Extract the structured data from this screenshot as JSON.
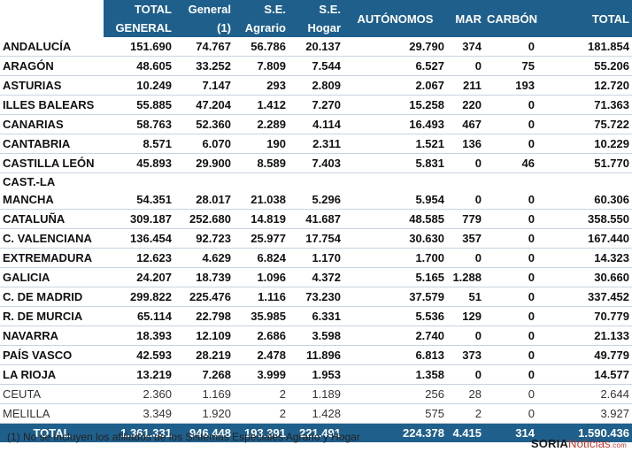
{
  "headers": {
    "total_general_1": "TOTAL",
    "total_general_2": "GENERAL",
    "general_1": "General",
    "general_2": "(1)",
    "se_agrario_1": "S.E.",
    "se_agrario_2": "Agrario",
    "se_hogar_1": "S.E.",
    "se_hogar_2": "Hogar",
    "autonomos": "AUTÓNOMOS",
    "mar": "MAR",
    "carbon": "CARBÓN",
    "total": "TOTAL"
  },
  "rows": [
    {
      "region": "ANDALUCÍA",
      "total_general": "151.690",
      "general": "74.767",
      "agrario": "56.786",
      "hogar": "20.137",
      "autonomos": "29.790",
      "mar": "374",
      "carbon": "0",
      "total": "181.854"
    },
    {
      "region": "ARAGÓN",
      "total_general": "48.605",
      "general": "33.252",
      "agrario": "7.809",
      "hogar": "7.544",
      "autonomos": "6.527",
      "mar": "0",
      "carbon": "75",
      "total": "55.206"
    },
    {
      "region": "ASTURIAS",
      "total_general": "10.249",
      "general": "7.147",
      "agrario": "293",
      "hogar": "2.809",
      "autonomos": "2.067",
      "mar": "211",
      "carbon": "193",
      "total": "12.720"
    },
    {
      "region": "ILLES BALEARS",
      "total_general": "55.885",
      "general": "47.204",
      "agrario": "1.412",
      "hogar": "7.270",
      "autonomos": "15.258",
      "mar": "220",
      "carbon": "0",
      "total": "71.363"
    },
    {
      "region": "CANARIAS",
      "total_general": "58.763",
      "general": "52.360",
      "agrario": "2.289",
      "hogar": "4.114",
      "autonomos": "16.493",
      "mar": "467",
      "carbon": "0",
      "total": "75.722"
    },
    {
      "region": "CANTABRIA",
      "total_general": "8.571",
      "general": "6.070",
      "agrario": "190",
      "hogar": "2.311",
      "autonomos": "1.521",
      "mar": "136",
      "carbon": "0",
      "total": "10.229"
    },
    {
      "region": "CASTILLA LEÓN",
      "total_general": "45.893",
      "general": "29.900",
      "agrario": "8.589",
      "hogar": "7.403",
      "autonomos": "5.831",
      "mar": "0",
      "carbon": "46",
      "total": "51.770"
    },
    {
      "region": "CAST.-LA MANCHA",
      "total_general": "54.351",
      "general": "28.017",
      "agrario": "21.038",
      "hogar": "5.296",
      "autonomos": "5.954",
      "mar": "0",
      "carbon": "0",
      "total": "60.306"
    },
    {
      "region": "CATALUÑA",
      "total_general": "309.187",
      "general": "252.680",
      "agrario": "14.819",
      "hogar": "41.687",
      "autonomos": "48.585",
      "mar": "779",
      "carbon": "0",
      "total": "358.550"
    },
    {
      "region": "C. VALENCIANA",
      "total_general": "136.454",
      "general": "92.723",
      "agrario": "25.977",
      "hogar": "17.754",
      "autonomos": "30.630",
      "mar": "357",
      "carbon": "0",
      "total": "167.440"
    },
    {
      "region": "EXTREMADURA",
      "total_general": "12.623",
      "general": "4.629",
      "agrario": "6.824",
      "hogar": "1.170",
      "autonomos": "1.700",
      "mar": "0",
      "carbon": "0",
      "total": "14.323"
    },
    {
      "region": "GALICIA",
      "total_general": "24.207",
      "general": "18.739",
      "agrario": "1.096",
      "hogar": "4.372",
      "autonomos": "5.165",
      "mar": "1.288",
      "carbon": "0",
      "total": "30.660"
    },
    {
      "region": "C. DE MADRID",
      "total_general": "299.822",
      "general": "225.476",
      "agrario": "1.116",
      "hogar": "73.230",
      "autonomos": "37.579",
      "mar": "51",
      "carbon": "0",
      "total": "337.452"
    },
    {
      "region": "R. DE MURCIA",
      "total_general": "65.114",
      "general": "22.798",
      "agrario": "35.985",
      "hogar": "6.331",
      "autonomos": "5.536",
      "mar": "129",
      "carbon": "0",
      "total": "70.779"
    },
    {
      "region": "NAVARRA",
      "total_general": "18.393",
      "general": "12.109",
      "agrario": "2.686",
      "hogar": "3.598",
      "autonomos": "2.740",
      "mar": "0",
      "carbon": "0",
      "total": "21.133"
    },
    {
      "region": "PAÍS VASCO",
      "total_general": "42.593",
      "general": "28.219",
      "agrario": "2.478",
      "hogar": "11.896",
      "autonomos": "6.813",
      "mar": "373",
      "carbon": "0",
      "total": "49.779"
    },
    {
      "region": "LA RIOJA",
      "total_general": "13.219",
      "general": "7.268",
      "agrario": "3.999",
      "hogar": "1.953",
      "autonomos": "1.358",
      "mar": "0",
      "carbon": "0",
      "total": "14.577"
    },
    {
      "region": "CEUTA",
      "total_general": "2.360",
      "general": "1.169",
      "agrario": "2",
      "hogar": "1.189",
      "autonomos": "256",
      "mar": "28",
      "carbon": "0",
      "total": "2.644"
    },
    {
      "region": "MELILLA",
      "total_general": "3.349",
      "general": "1.920",
      "agrario": "2",
      "hogar": "1.428",
      "autonomos": "575",
      "mar": "2",
      "carbon": "0",
      "total": "3.927"
    }
  ],
  "totals": {
    "region": "TOTAL",
    "total_general": "1.361.331",
    "general": "946.448",
    "agrario": "193.391",
    "hogar": "221.491",
    "autonomos": "224.378",
    "mar": "4.415",
    "carbon": "314",
    "total": "1.590.436"
  },
  "footnote": "(1) No se incluyen los afiliados de los Sistemas Especiales Agrario y Hogar",
  "logo": {
    "bold": "SORIA",
    "regular": "Noticias",
    "suffix": ".com"
  },
  "colors": {
    "header_bg": "#1f5f8b",
    "header_text": "#ffffff",
    "logo_red": "#c0392b"
  }
}
